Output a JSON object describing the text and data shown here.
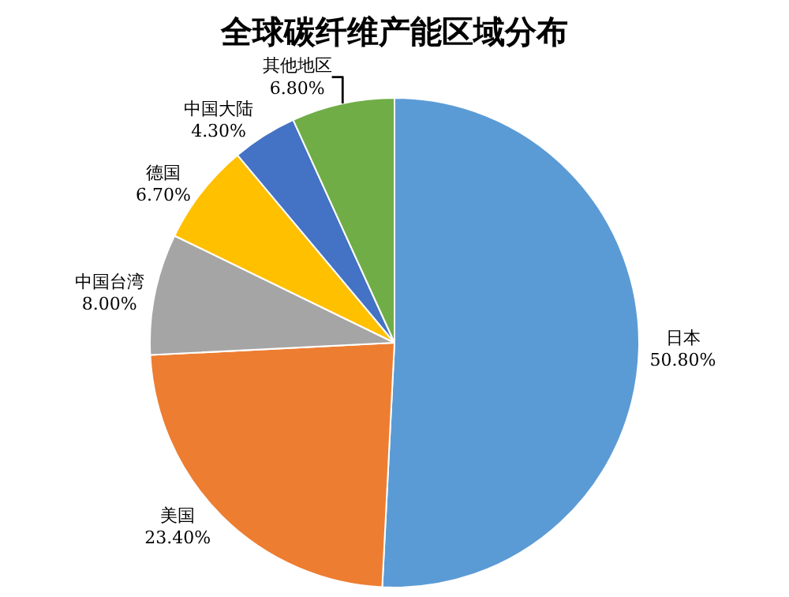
{
  "chart_data": {
    "type": "pie",
    "title": "全球碳纤维产能区域分布",
    "categories": [
      "日本",
      "美国",
      "中国台湾",
      "德国",
      "中国大陆",
      "其他地区"
    ],
    "values": [
      50.8,
      23.4,
      8.0,
      6.7,
      4.3,
      6.8
    ],
    "value_labels": [
      "50.80%",
      "23.40%",
      "8.00%",
      "6.70%",
      "4.30%",
      "6.80%"
    ],
    "colors": [
      "#5b9bd5",
      "#ed7d31",
      "#a5a5a5",
      "#ffc000",
      "#4472c4",
      "#70ad47"
    ],
    "legend": false
  }
}
